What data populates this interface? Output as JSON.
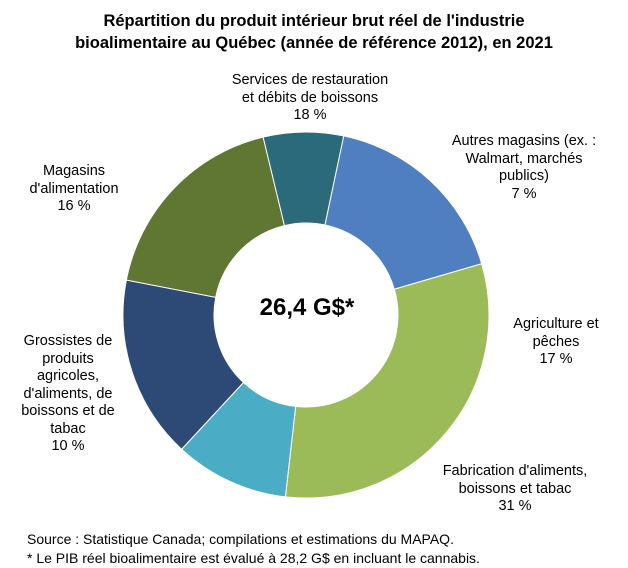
{
  "chart_data": {
    "type": "pie",
    "variant": "donut",
    "title_line1": "Répartition du produit intérieur brut réel de l'industrie",
    "title_line2": "bioalimentaire au Québec (année de référence 2012), en 2021",
    "center_text": "26,4 G$*",
    "unit": "%",
    "slices": [
      {
        "name_lines": [
          "Services de restauration",
          "et débits de boissons"
        ],
        "value_text": "18 %",
        "value": 18,
        "color": "#5f7732"
      },
      {
        "name_lines": [
          "Autres magasins (ex. :",
          "Walmart, marchés",
          "publics)"
        ],
        "value_text": "7 %",
        "value": 7,
        "color": "#2a6a7a"
      },
      {
        "name_lines": [
          "Agriculture et",
          "pêches"
        ],
        "value_text": "17 %",
        "value": 17,
        "color": "#4f7fc0"
      },
      {
        "name_lines": [
          "Fabrication d'aliments,",
          "boissons et tabac"
        ],
        "value_text": "31 %",
        "value": 31,
        "color": "#9bbb59"
      },
      {
        "name_lines": [
          "Grossistes de",
          "produits",
          "agricoles,",
          "d'aliments, de",
          "boissons et de",
          "tabac"
        ],
        "value_text": "10 %",
        "value": 10,
        "color": "#4bacc6"
      },
      {
        "name_lines": [
          "Magasins",
          "d'alimentation"
        ],
        "value_text": "16 %",
        "value": 16,
        "color": "#2c4a75"
      }
    ],
    "legend": "none"
  },
  "notes": {
    "source": "Source : Statistique Canada; compilations et estimations du MAPAQ.",
    "footnote": "* Le PIB réel bioalimentaire est évalué à 28,2 G$ en incluant le cannabis."
  }
}
